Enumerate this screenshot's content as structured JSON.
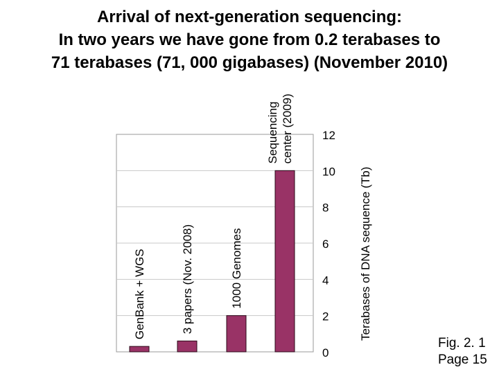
{
  "title_lines": [
    "Arrival of next-generation sequencing:",
    "In two years we have gone from 0.2 terabases to",
    "71 terabases (71, 000 gigabases) (November 2010)"
  ],
  "caption": {
    "fig": "Fig. 2. 1",
    "page": "Page 15"
  },
  "chart_data": {
    "type": "bar",
    "title": "",
    "xlabel": "",
    "ylabel": "Terabases of DNA sequence (Tb)",
    "categories": [
      "GenBank + WGS",
      "3 papers (Nov. 2008)",
      "1000 Genomes",
      "Sequencing center (2009)"
    ],
    "values": [
      0.3,
      0.6,
      2.0,
      10.0
    ],
    "ylim": [
      0,
      12
    ],
    "yticks": [
      "0",
      "2",
      "4",
      "6",
      "8",
      "10",
      "12"
    ],
    "y_axis_side": "right",
    "grid": true,
    "bar_color": "#993366"
  }
}
